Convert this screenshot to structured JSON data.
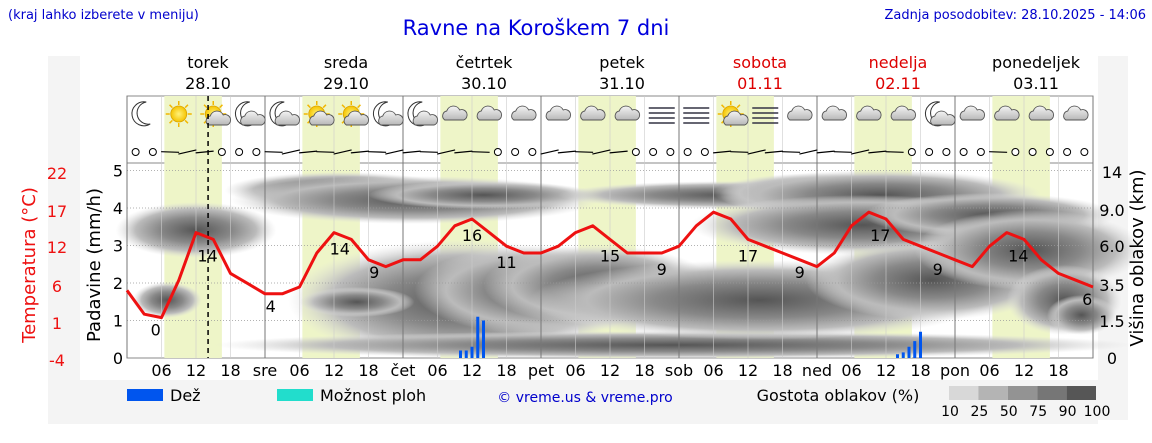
{
  "header": {
    "hint": "(kraj lahko izberete v meniju)",
    "title": "Ravne na Koroškem 7 dni",
    "updated": "Zadnja posodobitev: 28.10.2025 - 14:06"
  },
  "days": [
    {
      "name": "torek",
      "date": "28.10",
      "weekend": false
    },
    {
      "name": "sreda",
      "date": "29.10",
      "weekend": false
    },
    {
      "name": "četrtek",
      "date": "30.10",
      "weekend": false
    },
    {
      "name": "petek",
      "date": "31.10",
      "weekend": false
    },
    {
      "name": "sobota",
      "date": "01.11",
      "weekend": true
    },
    {
      "name": "nedelja",
      "date": "02.11",
      "weekend": true
    },
    {
      "name": "ponedeljek",
      "date": "03.11",
      "weekend": false
    }
  ],
  "x_axis_labels": [
    "06",
    "12",
    "18",
    "sre",
    "06",
    "12",
    "18",
    "čet",
    "06",
    "12",
    "18",
    "pet",
    "06",
    "12",
    "18",
    "sob",
    "06",
    "12",
    "18",
    "ned",
    "06",
    "12",
    "18",
    "pon",
    "06",
    "12",
    "18"
  ],
  "axes": {
    "left_outer_label": "Temperatura (°C)",
    "left_outer_ticks": [
      "22",
      "17",
      "12",
      "6",
      "1",
      "-4"
    ],
    "left_inner_label": "Padavine (mm/h)",
    "left_inner_ticks": [
      "5",
      "4",
      "3",
      "2",
      "1",
      "0"
    ],
    "right_label": "Višina oblakov (km)",
    "right_ticks": [
      "14",
      "9.0",
      "6.0",
      "3.5",
      "1.5",
      "0"
    ]
  },
  "legend": {
    "rain": "Dež",
    "storm": "Možnost ploh",
    "credit": "© vreme.us & vreme.pro",
    "cloud_title": "Gostota oblakov (%)",
    "cloud_scale": [
      "10",
      "25",
      "50",
      "75",
      "90",
      "100"
    ]
  },
  "colors": {
    "temperature": "#ee1111",
    "rain": "#0055ee",
    "storm": "#22ddcc",
    "weekend": "#dd0000",
    "text_blue": "#0000cc",
    "daylight": "#eef5c8"
  },
  "chart_data": {
    "type": "line",
    "title": "Ravne na Koroškem 7 dni",
    "xlabel": "",
    "ylabel": "Temperatura (°C)",
    "ylim": [
      -4,
      22
    ],
    "x_hours": [
      0,
      3,
      6,
      9,
      12,
      15,
      18,
      21,
      24,
      27,
      30,
      33,
      36,
      39,
      42,
      45,
      48,
      51,
      54,
      57,
      60,
      63,
      66,
      69,
      72,
      75,
      78,
      81,
      84,
      87,
      90,
      93,
      96,
      99,
      102,
      105,
      108,
      111,
      114,
      117,
      120,
      123,
      126,
      129,
      132,
      135,
      138,
      141,
      144,
      147,
      150,
      153,
      156,
      159,
      162,
      165,
      168
    ],
    "series": [
      {
        "values": [
          5.5,
          2,
          1.5,
          7,
          14,
          13,
          8,
          6.5,
          5,
          5,
          6,
          11,
          14,
          13,
          10,
          9,
          10,
          10,
          12,
          15,
          16,
          14,
          12,
          11,
          11,
          12,
          14,
          15,
          13,
          11,
          11,
          11,
          12,
          15,
          17,
          16,
          13,
          12,
          11,
          10,
          9,
          11,
          15,
          17,
          16,
          13,
          12,
          11,
          10,
          9,
          12,
          14,
          13,
          10,
          8,
          7,
          6
        ]
      }
    ],
    "labeled_points": [
      {
        "hour": 5,
        "value": "0"
      },
      {
        "hour": 14,
        "value": "14"
      },
      {
        "hour": 25,
        "value": "4"
      },
      {
        "hour": 37,
        "value": "14"
      },
      {
        "hour": 43,
        "value": "9"
      },
      {
        "hour": 60,
        "value": "16"
      },
      {
        "hour": 66,
        "value": "11"
      },
      {
        "hour": 84,
        "value": "15"
      },
      {
        "hour": 93,
        "value": "9"
      },
      {
        "hour": 108,
        "value": "17"
      },
      {
        "hour": 117,
        "value": "9"
      },
      {
        "hour": 131,
        "value": "17"
      },
      {
        "hour": 141,
        "value": "9"
      },
      {
        "hour": 155,
        "value": "14"
      },
      {
        "hour": 167,
        "value": "6"
      }
    ],
    "precipitation": [
      {
        "hour": 58,
        "mm": 0.2
      },
      {
        "hour": 59,
        "mm": 0.2
      },
      {
        "hour": 60,
        "mm": 0.3
      },
      {
        "hour": 61,
        "mm": 1.1
      },
      {
        "hour": 62,
        "mm": 1.0
      },
      {
        "hour": 134,
        "mm": 0.1
      },
      {
        "hour": 135,
        "mm": 0.15
      },
      {
        "hour": 136,
        "mm": 0.3
      },
      {
        "hour": 137,
        "mm": 0.45
      },
      {
        "hour": 138,
        "mm": 0.7
      }
    ],
    "current_time_hour": 14.1,
    "wind_arrows": "present",
    "cloud_layers": "present"
  }
}
